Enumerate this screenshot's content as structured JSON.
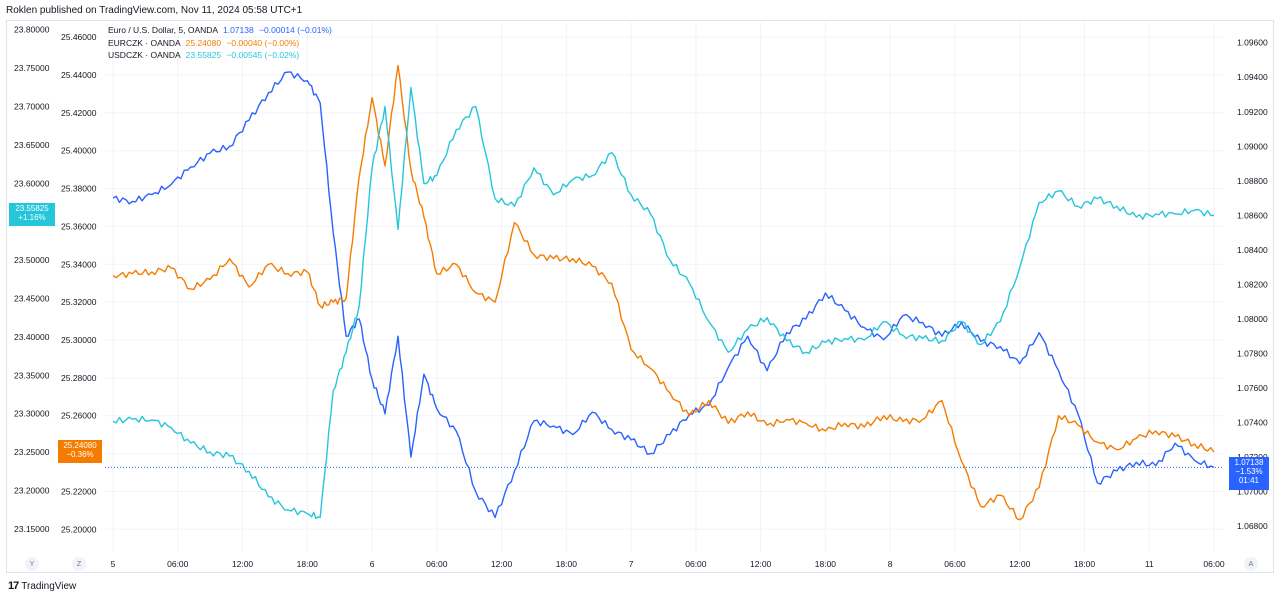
{
  "header": {
    "credit": "Roklen published on TradingView.com, Nov 11, 2024 05:58 UTC+1"
  },
  "legend": [
    {
      "name": "Euro / U.S. Dollar, 5, OANDA",
      "value": "1.07138",
      "change": "−0.00014 (−0.01%)",
      "color": "#2962ff"
    },
    {
      "name": "EURCZK · OANDA",
      "value": "25.24080",
      "change": "−0.00040 (−0.00%)",
      "color": "#f57c00"
    },
    {
      "name": "USDCZK · OANDA",
      "value": "23.55825",
      "change": "−0.00545 (−0.02%)",
      "color": "#26c6da"
    }
  ],
  "tags": {
    "usdczk": {
      "value": "23.55825",
      "pct": "+1.16%",
      "color": "#26c6da"
    },
    "eurczk": {
      "value": "25.24080",
      "pct": "−0.36%",
      "color": "#f57c00"
    },
    "eurusd": {
      "value": "1.07138",
      "pct": "−1.53%",
      "countdown": "01:41",
      "color": "#2962ff"
    }
  },
  "corner_buttons": {
    "y": "Y",
    "z": "Z",
    "a": "A"
  },
  "footer": {
    "mark": "17",
    "brand": "TradingView"
  },
  "chart_data": {
    "type": "line",
    "x_ticks": [
      "5",
      "06:00",
      "12:00",
      "18:00",
      "6",
      "06:00",
      "12:00",
      "18:00",
      "7",
      "06:00",
      "12:00",
      "18:00",
      "8",
      "06:00",
      "12:00",
      "18:00",
      "11",
      "06:00"
    ],
    "axes": {
      "usdczk": {
        "ylim": [
          23.12,
          23.81
        ],
        "ticks": [
          "23.15000",
          "23.20000",
          "23.25000",
          "23.30000",
          "23.35000",
          "23.40000",
          "23.45000",
          "23.50000",
          "23.55000",
          "23.60000",
          "23.65000",
          "23.70000",
          "23.75000",
          "23.80000"
        ]
      },
      "eurczk": {
        "ylim": [
          25.188,
          25.468
        ],
        "ticks": [
          "25.20000",
          "25.22000",
          "25.24000",
          "25.26000",
          "25.28000",
          "25.30000",
          "25.32000",
          "25.34000",
          "25.36000",
          "25.38000",
          "25.40000",
          "25.42000",
          "25.44000",
          "25.46000"
        ]
      },
      "eurusd": {
        "ylim": [
          1.0665,
          1.0972
        ],
        "ticks": [
          "1.06800",
          "1.07000",
          "1.07200",
          "1.07400",
          "1.07600",
          "1.07800",
          "1.08000",
          "1.08200",
          "1.08400",
          "1.08600",
          "1.08800",
          "1.09000",
          "1.09200",
          "1.09400",
          "1.09600"
        ]
      }
    },
    "series": [
      {
        "name": "Euro / U.S. Dollar, 5, OANDA",
        "axis": "eurusd",
        "color": "#2962ff",
        "x": [
          0,
          0.3,
          0.6,
          0.9,
          1.2,
          1.5,
          1.8,
          2.1,
          2.4,
          2.7,
          3.0,
          3.2,
          3.4,
          3.6,
          3.8,
          4.0,
          4.2,
          4.4,
          4.6,
          4.8,
          5.0,
          5.3,
          5.6,
          5.9,
          6.2,
          6.5,
          6.8,
          7.1,
          7.4,
          7.7,
          8.0,
          8.3,
          8.6,
          8.9,
          9.2,
          9.5,
          9.8,
          10.1,
          10.4,
          10.7,
          11.0,
          11.3,
          11.6,
          11.9,
          12.2,
          12.5,
          12.8,
          13.1,
          13.4,
          13.7,
          14.0,
          14.3,
          14.6,
          14.9,
          15.2,
          15.5,
          15.8,
          16.1,
          16.4,
          16.7,
          17.0
        ],
        "values": [
          1.087,
          1.0868,
          1.0872,
          1.0878,
          1.0888,
          1.0896,
          1.09,
          1.0915,
          1.0931,
          1.0943,
          1.0938,
          1.0925,
          1.085,
          1.079,
          1.08,
          1.0765,
          1.0745,
          1.079,
          1.072,
          1.0768,
          1.0748,
          1.0735,
          1.07,
          1.0685,
          1.0712,
          1.0741,
          1.0738,
          1.0733,
          1.0746,
          1.0736,
          1.073,
          1.0722,
          1.0733,
          1.0745,
          1.075,
          1.0772,
          1.079,
          1.077,
          1.0792,
          1.08,
          1.0815,
          1.0805,
          1.0795,
          1.0788,
          1.0802,
          1.0798,
          1.079,
          1.0798,
          1.0787,
          1.0784,
          1.0774,
          1.0792,
          1.077,
          1.0745,
          1.0705,
          1.0712,
          1.0717,
          1.0715,
          1.0728,
          1.0718,
          1.0714
        ]
      },
      {
        "name": "EURCZK · OANDA",
        "axis": "eurczk",
        "color": "#f57c00",
        "x": [
          0,
          0.3,
          0.6,
          0.9,
          1.2,
          1.5,
          1.8,
          2.1,
          2.4,
          2.7,
          3.0,
          3.2,
          3.4,
          3.6,
          3.8,
          4.0,
          4.2,
          4.4,
          4.6,
          4.8,
          5.0,
          5.3,
          5.6,
          5.9,
          6.2,
          6.5,
          6.8,
          7.1,
          7.4,
          7.7,
          8.0,
          8.3,
          8.6,
          8.9,
          9.2,
          9.5,
          9.8,
          10.1,
          10.4,
          10.7,
          11.0,
          11.3,
          11.6,
          11.9,
          12.2,
          12.5,
          12.8,
          13.1,
          13.4,
          13.7,
          14.0,
          14.3,
          14.6,
          14.9,
          15.2,
          15.5,
          15.8,
          16.1,
          16.4,
          16.7,
          17.0
        ],
        "values": [
          25.334,
          25.335,
          25.336,
          25.338,
          25.327,
          25.332,
          25.343,
          25.328,
          25.34,
          25.335,
          25.336,
          25.318,
          25.32,
          25.322,
          25.386,
          25.428,
          25.392,
          25.445,
          25.39,
          25.365,
          25.335,
          25.34,
          25.325,
          25.32,
          25.362,
          25.345,
          25.343,
          25.343,
          25.339,
          25.33,
          25.295,
          25.285,
          25.272,
          25.26,
          25.268,
          25.256,
          25.262,
          25.255,
          25.258,
          25.256,
          25.252,
          25.256,
          25.254,
          25.26,
          25.257,
          25.258,
          25.268,
          25.236,
          25.212,
          25.218,
          25.205,
          25.222,
          25.26,
          25.255,
          25.246,
          25.242,
          25.248,
          25.252,
          25.249,
          25.245,
          25.2408
        ]
      },
      {
        "name": "USDCZK · OANDA",
        "axis": "usdczk",
        "color": "#26c6da",
        "x": [
          0,
          0.3,
          0.6,
          0.9,
          1.2,
          1.5,
          1.8,
          2.1,
          2.4,
          2.7,
          3.0,
          3.2,
          3.4,
          3.6,
          3.8,
          4.0,
          4.2,
          4.4,
          4.6,
          4.8,
          5.0,
          5.3,
          5.6,
          5.9,
          6.2,
          6.5,
          6.8,
          7.1,
          7.4,
          7.7,
          8.0,
          8.3,
          8.6,
          8.9,
          9.2,
          9.5,
          9.8,
          10.1,
          10.4,
          10.7,
          11.0,
          11.3,
          11.6,
          11.9,
          12.2,
          12.5,
          12.8,
          13.1,
          13.4,
          13.7,
          14.0,
          14.3,
          14.6,
          14.9,
          15.2,
          15.5,
          15.8,
          16.1,
          16.4,
          16.7,
          17.0
        ],
        "values": [
          23.29,
          23.293,
          23.292,
          23.282,
          23.262,
          23.25,
          23.245,
          23.225,
          23.192,
          23.175,
          23.17,
          23.165,
          23.33,
          23.38,
          23.44,
          23.62,
          23.7,
          23.54,
          23.725,
          23.6,
          23.61,
          23.67,
          23.7,
          23.58,
          23.57,
          23.62,
          23.585,
          23.605,
          23.61,
          23.64,
          23.585,
          23.56,
          23.5,
          23.47,
          23.42,
          23.38,
          23.41,
          23.425,
          23.395,
          23.38,
          23.393,
          23.398,
          23.396,
          23.42,
          23.402,
          23.398,
          23.395,
          23.42,
          23.39,
          23.42,
          23.49,
          23.575,
          23.59,
          23.57,
          23.58,
          23.57,
          23.556,
          23.56,
          23.56,
          23.565,
          23.55825
        ]
      }
    ]
  }
}
